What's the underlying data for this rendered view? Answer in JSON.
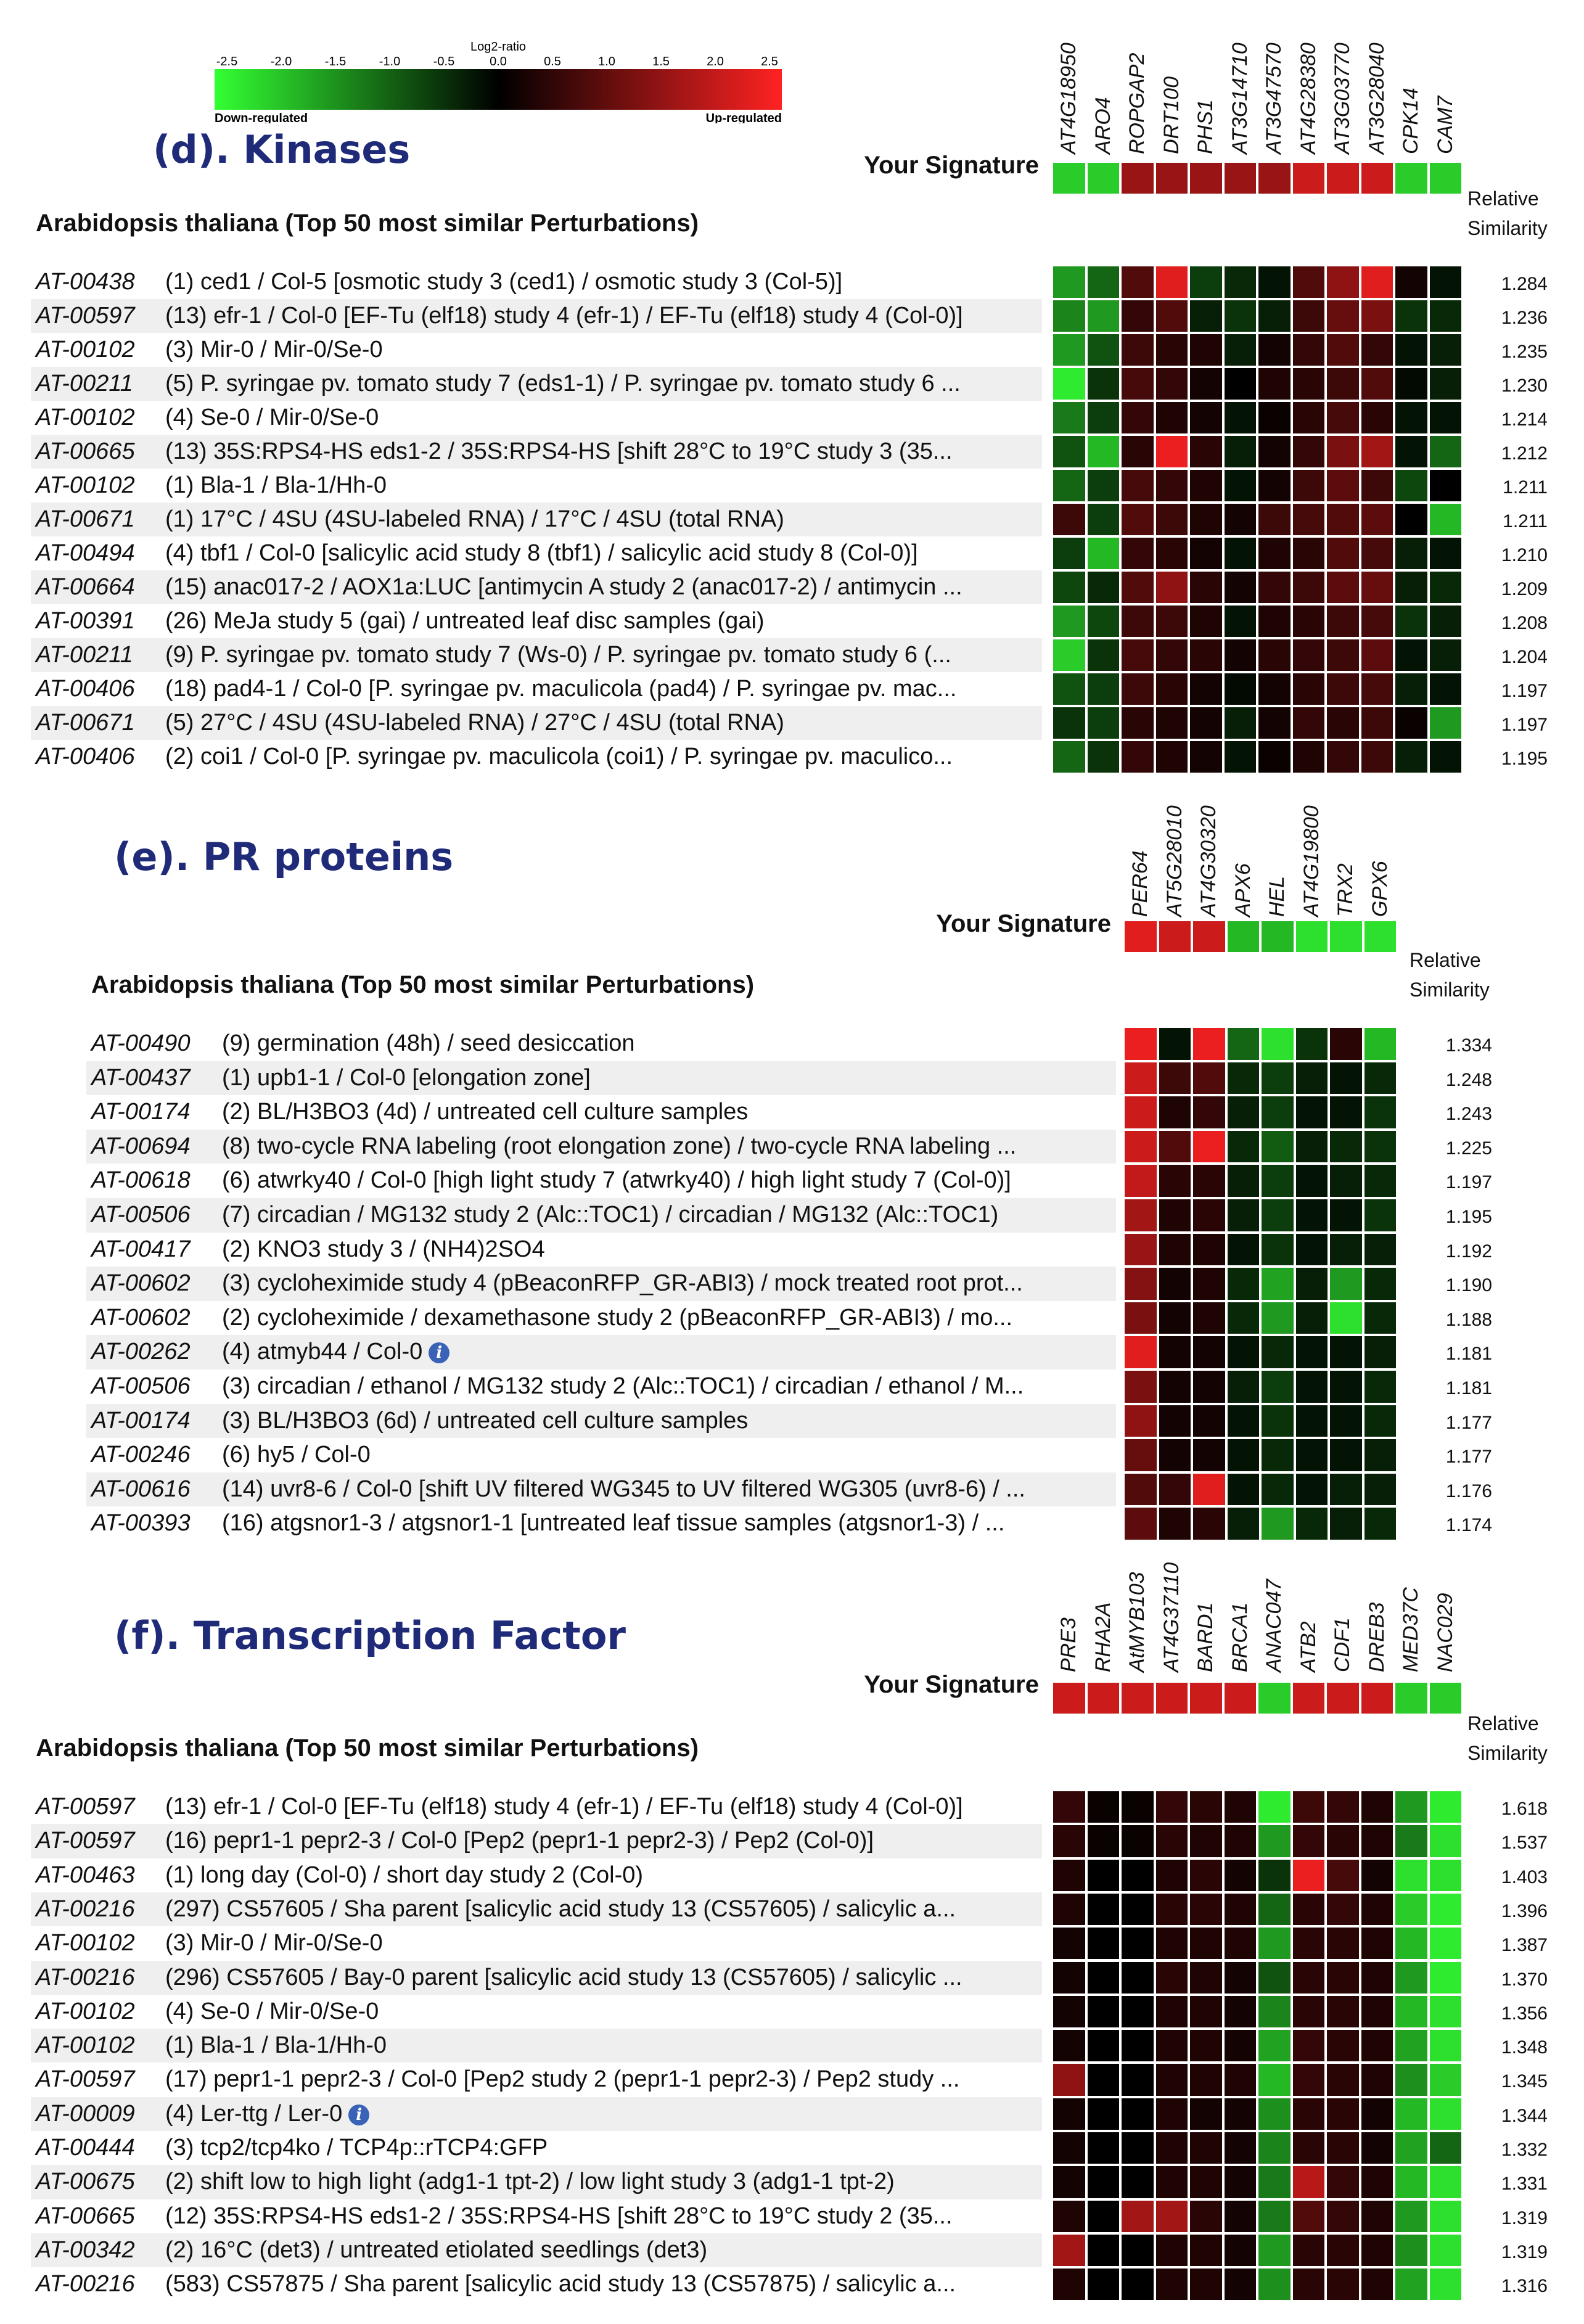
{
  "colorbar": {
    "title": "Log2-ratio",
    "ticks": [
      "-2.5",
      "-2.0",
      "-1.5",
      "-1.0",
      "-0.5",
      "0.0",
      "0.5",
      "1.0",
      "1.5",
      "2.0",
      "2.5"
    ],
    "low_label": "Down-regulated",
    "high_label": "Up-regulated",
    "colors": {
      "low": "#33ff33",
      "mid": "#000000",
      "high": "#ff2222"
    }
  },
  "chart_data": [
    {
      "type": "heatmap",
      "title": "(d). Kinases",
      "signature_label": "Your Signature",
      "organism_title": "Arabidopsis thaliana (Top 50 most similar Perturbations)",
      "similarity_header": [
        "Relative",
        "Similarity"
      ],
      "value_range": [
        -2.5,
        2.5
      ],
      "genes": [
        "AT4G18950",
        "ARO4",
        "ROPGAP2",
        "DRT100",
        "PHS1",
        "AT3G14710",
        "AT3G47570",
        "AT4G28380",
        "AT3G03770",
        "AT3G28040",
        "CPK14",
        "CAM7"
      ],
      "signature": [
        -2,
        -2,
        1.5,
        1.5,
        1.5,
        1.5,
        1.5,
        2,
        2,
        2,
        -2,
        -2
      ],
      "rows": [
        {
          "id": "AT-00438",
          "desc": "(1) ced1 / Col-5 [osmotic study 3 (ced1) / osmotic study 3 (Col-5)]",
          "similarity": "1.284",
          "values": [
            -1.5,
            -1,
            0.8,
            2.2,
            -0.6,
            -0.4,
            -0.2,
            0.8,
            1.4,
            2.2,
            0.2,
            -0.2
          ]
        },
        {
          "id": "AT-00597",
          "desc": "(13) efr-1 / Col-0 [EF-Tu (elf18) study 4 (efr-1) / EF-Tu (elf18) study 4 (Col-0)]",
          "similarity": "1.236",
          "values": [
            -1.3,
            -1.5,
            0.5,
            0.8,
            -0.3,
            -0.5,
            -0.3,
            0.6,
            1,
            1.2,
            -0.5,
            -0.4
          ]
        },
        {
          "id": "AT-00102",
          "desc": "(3) Mir-0 / Mir-0/Se-0",
          "similarity": "1.235",
          "values": [
            -1.5,
            -0.8,
            0.6,
            0.4,
            0.3,
            -0.3,
            0.2,
            0.5,
            0.8,
            0.5,
            -0.2,
            -0.3
          ]
        },
        {
          "id": "AT-00211",
          "desc": "(5) P. syringae pv. tomato study 7 (eds1-1) / P. syringae pv. tomato study 6 ...",
          "similarity": "1.230",
          "values": [
            -2.3,
            -0.5,
            0.7,
            0.5,
            0.2,
            0,
            0.3,
            0.4,
            0.6,
            0.8,
            -0.1,
            -0.3
          ]
        },
        {
          "id": "AT-00102",
          "desc": "(4) Se-0 / Mir-0/Se-0",
          "similarity": "1.214",
          "values": [
            -1.2,
            -0.6,
            0.5,
            0.3,
            0.2,
            -0.2,
            0.1,
            0.4,
            0.7,
            0.4,
            -0.2,
            -0.2
          ]
        },
        {
          "id": "AT-00665",
          "desc": "(13) 35S:RPS4-HS eds1-2 / 35S:RPS4-HS [shift 28°C to 19°C study 3 (35...",
          "similarity": "1.212",
          "values": [
            -0.8,
            -1.8,
            0.4,
            2.3,
            0.4,
            -0.3,
            0.2,
            0.5,
            1.2,
            1.6,
            -0.2,
            -1
          ]
        },
        {
          "id": "AT-00102",
          "desc": "(1) Bla-1 / Bla-1/Hh-0",
          "similarity": "1.211",
          "values": [
            -1,
            -0.6,
            0.7,
            0.5,
            0.3,
            -0.2,
            0.2,
            0.6,
            0.9,
            0.6,
            -0.7,
            0
          ]
        },
        {
          "id": "AT-00671",
          "desc": "(1) 17°C / 4SU (4SU-labeled RNA) / 17°C / 4SU (total RNA)",
          "similarity": "1.211",
          "values": [
            0.6,
            -0.6,
            0.8,
            0.6,
            0.3,
            0.2,
            0.6,
            0.7,
            0.8,
            0.9,
            0,
            -1.8
          ]
        },
        {
          "id": "AT-00494",
          "desc": "(4) tbf1 / Col-0 [salicylic acid study 8 (tbf1) / salicylic acid study 8 (Col-0)]",
          "similarity": "1.210",
          "values": [
            -0.6,
            -1.8,
            0.5,
            0.4,
            0.2,
            -0.2,
            0.3,
            0.4,
            0.8,
            0.7,
            -0.3,
            -0.2
          ]
        },
        {
          "id": "AT-00664",
          "desc": "(15) anac017-2 / AOX1a:LUC [antimycin A study 2 (anac017-2) / antimycin ...",
          "similarity": "1.209",
          "values": [
            -0.7,
            -0.4,
            0.8,
            1.4,
            0.4,
            0.2,
            0.5,
            0.6,
            0.9,
            1,
            -0.3,
            -0.4
          ]
        },
        {
          "id": "AT-00391",
          "desc": "(26) MeJa study 5 (gai) / untreated leaf disc samples (gai)",
          "similarity": "1.208",
          "values": [
            -1.5,
            -0.7,
            0.6,
            0.6,
            0.3,
            -0.2,
            0.3,
            0.4,
            0.6,
            0.7,
            -0.5,
            -0.3
          ]
        },
        {
          "id": "AT-00211",
          "desc": "(9) P. syringae pv. tomato study 7 (Ws-0) / P. syringae pv. tomato study 6 (...",
          "similarity": "1.204",
          "values": [
            -2,
            -0.5,
            0.7,
            0.5,
            0.4,
            0.2,
            0.4,
            0.5,
            0.6,
            0.9,
            -0.2,
            -0.3
          ]
        },
        {
          "id": "AT-00406",
          "desc": "(18) pad4-1 / Col-0 [P. syringae pv. maculicola (pad4) / P. syringae pv. mac...",
          "similarity": "1.197",
          "values": [
            -0.8,
            -0.6,
            0.6,
            0.4,
            0.2,
            -0.1,
            0.2,
            0.4,
            0.6,
            0.7,
            -0.3,
            -0.2
          ]
        },
        {
          "id": "AT-00671",
          "desc": "(5) 27°C / 4SU (4SU-labeled RNA) / 27°C / 4SU (total RNA)",
          "similarity": "1.197",
          "values": [
            -0.5,
            -0.6,
            0.4,
            0.3,
            0.2,
            -0.3,
            0.2,
            0.5,
            0.4,
            0.6,
            0.1,
            -1.5
          ]
        },
        {
          "id": "AT-00406",
          "desc": "(2) coi1 / Col-0 [P. syringae pv. maculicola (coi1) / P. syringae pv. maculico...",
          "similarity": "1.195",
          "values": [
            -1,
            -0.5,
            0.5,
            0.3,
            0.2,
            -0.2,
            0.1,
            0.3,
            0.5,
            0.6,
            -0.3,
            -0.2
          ]
        }
      ]
    },
    {
      "type": "heatmap",
      "title": "(e). PR proteins",
      "signature_label": "Your Signature",
      "organism_title": "Arabidopsis thaliana (Top 50 most similar Perturbations)",
      "similarity_header": [
        "Relative",
        "Similarity"
      ],
      "value_range": [
        -2.5,
        2.5
      ],
      "genes": [
        "PER64",
        "AT5G28010",
        "AT4G30320",
        "APX6",
        "HEL",
        "AT4G19800",
        "TRX2",
        "GPX6"
      ],
      "signature": [
        2.2,
        2,
        2,
        -1.8,
        -1.8,
        -2.2,
        -2.2,
        -2.2
      ],
      "rows": [
        {
          "id": "AT-00490",
          "desc": "(9) germination (48h) / seed desiccation",
          "similarity": "1.334",
          "values": [
            2.3,
            -0.2,
            2.3,
            -1,
            -2.2,
            -0.5,
            0.4,
            -1.8
          ]
        },
        {
          "id": "AT-00437",
          "desc": "(1) upb1-1 / Col-0 [elongation zone]",
          "similarity": "1.248",
          "values": [
            2,
            0.6,
            0.8,
            -0.4,
            -0.6,
            -0.3,
            -0.2,
            -0.4
          ]
        },
        {
          "id": "AT-00174",
          "desc": "(2) BL/H3BO3 (4d) / untreated cell culture samples",
          "similarity": "1.243",
          "values": [
            2,
            0.3,
            0.5,
            -0.3,
            -0.6,
            -0.2,
            -0.2,
            -0.5
          ]
        },
        {
          "id": "AT-00694",
          "desc": "(8) two-cycle RNA labeling (root elongation zone) / two-cycle RNA labeling ...",
          "similarity": "1.225",
          "values": [
            2,
            0.8,
            2.3,
            -0.4,
            -0.9,
            -0.3,
            -0.4,
            -0.5
          ]
        },
        {
          "id": "AT-00618",
          "desc": "(6) atwrky40 / Col-0 [high light study 7 (atwrky40) / high light study 7 (Col-0)]",
          "similarity": "1.197",
          "values": [
            1.9,
            0.4,
            0.4,
            -0.3,
            -0.6,
            -0.2,
            -0.3,
            -0.4
          ]
        },
        {
          "id": "AT-00506",
          "desc": "(7) circadian / MG132 study 2 (Alc::TOC1) / circadian / MG132 (Alc::TOC1)",
          "similarity": "1.195",
          "values": [
            1.6,
            0.3,
            0.4,
            -0.3,
            -0.6,
            -0.2,
            -0.2,
            -0.5
          ]
        },
        {
          "id": "AT-00417",
          "desc": "(2) KNO3 study 3 / (NH4)2SO4",
          "similarity": "1.192",
          "values": [
            1.5,
            0.3,
            0.3,
            -0.2,
            -0.5,
            -0.2,
            -0.3,
            -0.3
          ]
        },
        {
          "id": "AT-00602",
          "desc": "(3) cycloheximide study 4 (pBeaconRFP_GR-ABI3) / mock treated root prot...",
          "similarity": "1.190",
          "values": [
            1.3,
            0.2,
            0.3,
            -0.4,
            -1.6,
            -0.3,
            -1.5,
            -0.4
          ]
        },
        {
          "id": "AT-00602",
          "desc": "(2) cycloheximide / dexamethasone study 2 (pBeaconRFP_GR-ABI3) / mo...",
          "similarity": "1.188",
          "values": [
            1.2,
            0.2,
            0.3,
            -0.4,
            -1.5,
            -0.3,
            -2.2,
            -0.4
          ]
        },
        {
          "id": "AT-00262",
          "desc": "(4) atmyb44 / Col-0",
          "similarity": "1.181",
          "info": true,
          "values": [
            2.2,
            0.2,
            0.2,
            -0.2,
            -0.4,
            -0.2,
            -0.2,
            -0.3
          ]
        },
        {
          "id": "AT-00506",
          "desc": "(3) circadian / ethanol / MG132 study 2 (Alc::TOC1) / circadian / ethanol / M...",
          "similarity": "1.181",
          "values": [
            1.2,
            0.2,
            0.2,
            -0.3,
            -0.6,
            -0.2,
            -0.2,
            -0.4
          ]
        },
        {
          "id": "AT-00174",
          "desc": "(3) BL/H3BO3 (6d) / untreated cell culture samples",
          "similarity": "1.177",
          "values": [
            1.4,
            0.2,
            0.2,
            -0.2,
            -0.5,
            -0.2,
            -0.2,
            -0.4
          ]
        },
        {
          "id": "AT-00246",
          "desc": "(6) hy5 / Col-0",
          "similarity": "1.177",
          "values": [
            1,
            0.2,
            0.2,
            -0.2,
            -0.4,
            -0.2,
            -0.2,
            -0.3
          ]
        },
        {
          "id": "AT-00616",
          "desc": "(14) uvr8-6 / Col-0 [shift UV filtered WG345 to UV filtered WG305 (uvr8-6) / ...",
          "similarity": "1.176",
          "values": [
            0.8,
            0.5,
            2.2,
            -0.2,
            -0.4,
            -0.2,
            -0.3,
            -0.3
          ]
        },
        {
          "id": "AT-00393",
          "desc": "(16) atgsnor1-3 / atgsnor1-1 [untreated leaf tissue samples (atgsnor1-3) / ...",
          "similarity": "1.174",
          "values": [
            0.9,
            0.3,
            0.4,
            -0.3,
            -1.5,
            -0.4,
            -0.3,
            -0.4
          ]
        }
      ]
    },
    {
      "type": "heatmap",
      "title": "(f). Transcription Factor",
      "signature_label": "Your Signature",
      "organism_title": "Arabidopsis thaliana (Top 50 most similar Perturbations)",
      "similarity_header": [
        "Relative",
        "Similarity"
      ],
      "value_range": [
        -2.5,
        2.5
      ],
      "genes": [
        "PRE3",
        "RHA2A",
        "AtMYB103",
        "AT4G37110",
        "BARD1",
        "BRCA1",
        "ANAC047",
        "ATB2",
        "CDF1",
        "DREB3",
        "MED37C",
        "NAC029"
      ],
      "signature": [
        2,
        2,
        2,
        2,
        2,
        2,
        -2,
        2,
        2,
        2,
        -2,
        -2
      ],
      "rows": [
        {
          "id": "AT-00597",
          "desc": "(13) efr-1 / Col-0 [EF-Tu (elf18) study 4 (efr-1) / EF-Tu (elf18) study 4 (Col-0)]",
          "similarity": "1.618",
          "values": [
            0.5,
            0.1,
            0.1,
            0.5,
            0.4,
            0.3,
            -2.3,
            0.6,
            0.5,
            0.3,
            -1.5,
            -2.3
          ]
        },
        {
          "id": "AT-00597",
          "desc": "(16) pepr1-1 pepr2-3 / Col-0 [Pep2 (pepr1-1 pepr2-3) / Pep2 (Col-0)]",
          "similarity": "1.537",
          "values": [
            0.4,
            0.1,
            0.1,
            0.4,
            0.3,
            0.3,
            -1.5,
            0.5,
            0.4,
            0.3,
            -1.2,
            -2.2
          ]
        },
        {
          "id": "AT-00463",
          "desc": "(1) long day (Col-0) / short day study 2 (Col-0)",
          "similarity": "1.403",
          "values": [
            0.3,
            0,
            0,
            0.3,
            0.4,
            0.2,
            -0.5,
            2.3,
            0.7,
            0.2,
            -2.2,
            -2.2
          ]
        },
        {
          "id": "AT-00216",
          "desc": "(297) CS57605 / Sha parent [salicylic acid study 13 (CS57605) / salicylic a...",
          "similarity": "1.396",
          "values": [
            0.3,
            0,
            0,
            0.4,
            0.4,
            0.3,
            -1,
            0.4,
            0.5,
            0.3,
            -2,
            -2.3
          ]
        },
        {
          "id": "AT-00102",
          "desc": "(3) Mir-0 / Mir-0/Se-0",
          "similarity": "1.387",
          "values": [
            0.2,
            0,
            0,
            0.3,
            0.3,
            0.3,
            -1.5,
            0.4,
            0.4,
            0.3,
            -1.8,
            -2.3
          ]
        },
        {
          "id": "AT-00216",
          "desc": "(296) CS57605 / Bay-0 parent [salicylic acid study 13 (CS57605) / salicylic ...",
          "similarity": "1.370",
          "values": [
            0.2,
            0,
            0,
            0.4,
            0.3,
            0.2,
            -0.8,
            0.4,
            0.4,
            0.3,
            -1.5,
            -2.3
          ]
        },
        {
          "id": "AT-00102",
          "desc": "(4) Se-0 / Mir-0/Se-0",
          "similarity": "1.356",
          "values": [
            0.2,
            0,
            0,
            0.3,
            0.3,
            0.2,
            -1.3,
            0.4,
            0.4,
            0.3,
            -1.8,
            -2.2
          ]
        },
        {
          "id": "AT-00102",
          "desc": "(1) Bla-1 / Bla-1/Hh-0",
          "similarity": "1.348",
          "values": [
            0.2,
            0,
            0,
            0.3,
            0.3,
            0.2,
            -1.6,
            0.5,
            0.4,
            0.3,
            -1.6,
            -2.2
          ]
        },
        {
          "id": "AT-00597",
          "desc": "(17) pepr1-1 pepr2-3 / Col-0 [Pep2 study 2 (pepr1-1 pepr2-3) / Pep2 study ...",
          "similarity": "1.345",
          "values": [
            1.4,
            0,
            0,
            0.3,
            0.3,
            0.3,
            -1.8,
            0.5,
            0.4,
            0.3,
            -1.4,
            -2
          ]
        },
        {
          "id": "AT-00009",
          "desc": "(4) Ler-ttg / Ler-0",
          "similarity": "1.344",
          "info": true,
          "values": [
            0.2,
            0,
            0,
            0.3,
            0.2,
            0.2,
            -1.4,
            0.4,
            0.4,
            0.2,
            -1.8,
            -2.2
          ]
        },
        {
          "id": "AT-00444",
          "desc": "(3) tcp2/tcp4ko / TCP4p::rTCP4:GFP",
          "similarity": "1.332",
          "values": [
            0.2,
            0,
            0,
            0.3,
            0.3,
            0.2,
            -1.3,
            0.4,
            0.4,
            0.2,
            -1.6,
            -1
          ]
        },
        {
          "id": "AT-00675",
          "desc": "(2) shift low to high light (adg1-1 tpt-2) / low light study 3 (adg1-1 tpt-2)",
          "similarity": "1.331",
          "values": [
            0.2,
            0,
            0,
            0.3,
            0.3,
            0.2,
            -1.2,
            1.8,
            0.5,
            0.3,
            -1.8,
            -2.2
          ]
        },
        {
          "id": "AT-00665",
          "desc": "(12) 35S:RPS4-HS eds1-2 / 35S:RPS4-HS [shift 28°C to 19°C study 2 (35...",
          "similarity": "1.319",
          "values": [
            0.3,
            0,
            1.6,
            1.6,
            0.4,
            0.2,
            -1.2,
            0.8,
            0.5,
            0.3,
            -1.5,
            -2.2
          ]
        },
        {
          "id": "AT-00342",
          "desc": "(2) 16°C (det3) / untreated etiolated seedlings (det3)",
          "similarity": "1.319",
          "values": [
            1.6,
            0,
            0,
            0.3,
            0.3,
            0.2,
            -1.5,
            0.4,
            0.4,
            0.3,
            -1.4,
            -2.2
          ]
        },
        {
          "id": "AT-00216",
          "desc": "(583) CS57875 / Sha parent [salicylic acid study 13 (CS57875) / salicylic a...",
          "similarity": "1.316",
          "values": [
            0.3,
            0,
            0,
            0.3,
            0.3,
            0.2,
            -1.4,
            0.4,
            0.4,
            0.3,
            -1.6,
            -2.2
          ]
        }
      ]
    }
  ]
}
